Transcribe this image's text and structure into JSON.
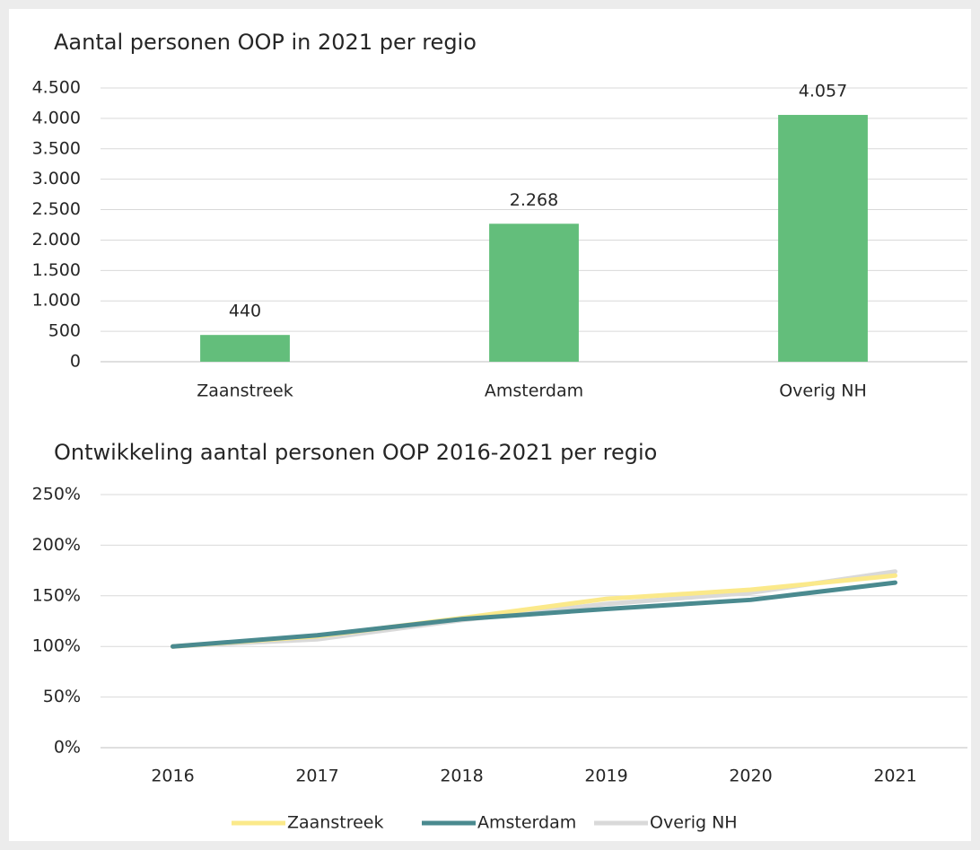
{
  "chart_data": [
    {
      "type": "bar",
      "title": "Aantal personen OOP in 2021 per regio",
      "categories": [
        "Zaanstreek",
        "Amsterdam",
        "Overig NH"
      ],
      "values": [
        440,
        2268,
        4057
      ],
      "value_labels": [
        "440",
        "2.268",
        "4.057"
      ],
      "color": "#63be7b",
      "ylim": [
        0,
        4500
      ],
      "yticks": [
        0,
        500,
        {
          "value": 1000,
          "label": "1.000"
        },
        {
          "value": 1500,
          "label": "1.500"
        },
        {
          "value": 2000,
          "label": "2.000"
        },
        {
          "value": 2500,
          "label": "2.500"
        },
        {
          "value": 3000,
          "label": "3.000"
        },
        {
          "value": 3500,
          "label": "3.500"
        },
        {
          "value": 4000,
          "label": "4.000"
        },
        {
          "value": 4500,
          "label": "4.500"
        }
      ],
      "grid": true
    },
    {
      "type": "line",
      "title": "Ontwikkeling aantal personen OOP 2016-2021 per regio",
      "categories": [
        "2016",
        "2017",
        "2018",
        "2019",
        "2020",
        "2021"
      ],
      "series": [
        {
          "name": "Zaanstreek",
          "color": "#fbe98a",
          "values": [
            100,
            110,
            128,
            147,
            156,
            170
          ]
        },
        {
          "name": "Amsterdam",
          "color": "#4a8a8f",
          "values": [
            100,
            111,
            127,
            137,
            146,
            163
          ]
        },
        {
          "name": "Overig NH",
          "color": "#d9d9d9",
          "values": [
            100,
            107,
            126,
            142,
            153,
            174
          ]
        }
      ],
      "ylim": [
        0,
        250
      ],
      "yticks": [
        {
          "value": 0,
          "label": "0%"
        },
        {
          "value": 50,
          "label": "50%"
        },
        {
          "value": 100,
          "label": "100%"
        },
        {
          "value": 150,
          "label": "150%"
        },
        {
          "value": 200,
          "label": "200%"
        },
        {
          "value": 250,
          "label": "250%"
        }
      ],
      "grid": true,
      "legend": "bottom"
    }
  ]
}
